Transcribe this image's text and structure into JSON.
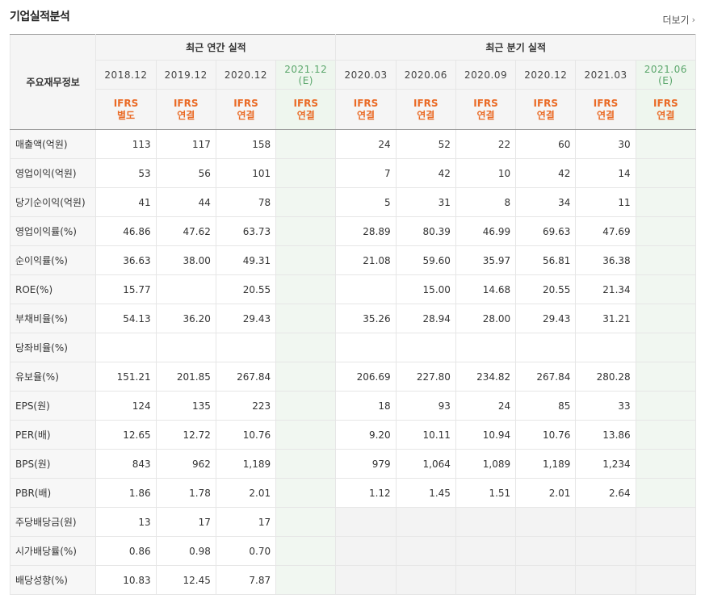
{
  "header": {
    "title": "기업실적분석",
    "more_label": "더보기"
  },
  "table": {
    "row_header": "주요재무정보",
    "group_annual": "최근 연간 실적",
    "group_quarter": "최근 분기 실적",
    "annual_periods": [
      {
        "date": "2018.12",
        "est": "",
        "std": "IFRS",
        "scope": "별도"
      },
      {
        "date": "2019.12",
        "est": "",
        "std": "IFRS",
        "scope": "연결"
      },
      {
        "date": "2020.12",
        "est": "",
        "std": "IFRS",
        "scope": "연결"
      },
      {
        "date": "2021.12",
        "est": "(E)",
        "std": "IFRS",
        "scope": "연결"
      }
    ],
    "quarter_periods": [
      {
        "date": "2020.03",
        "est": "",
        "std": "IFRS",
        "scope": "연결"
      },
      {
        "date": "2020.06",
        "est": "",
        "std": "IFRS",
        "scope": "연결"
      },
      {
        "date": "2020.09",
        "est": "",
        "std": "IFRS",
        "scope": "연결"
      },
      {
        "date": "2020.12",
        "est": "",
        "std": "IFRS",
        "scope": "연결"
      },
      {
        "date": "2021.03",
        "est": "",
        "std": "IFRS",
        "scope": "연결"
      },
      {
        "date": "2021.06",
        "est": "(E)",
        "std": "IFRS",
        "scope": "연결"
      }
    ],
    "rows": [
      {
        "label": "매출액(억원)",
        "annual": [
          "113",
          "117",
          "158",
          ""
        ],
        "quarter": [
          "24",
          "52",
          "22",
          "60",
          "30",
          ""
        ]
      },
      {
        "label": "영업이익(억원)",
        "annual": [
          "53",
          "56",
          "101",
          ""
        ],
        "quarter": [
          "7",
          "42",
          "10",
          "42",
          "14",
          ""
        ]
      },
      {
        "label": "당기순이익(억원)",
        "annual": [
          "41",
          "44",
          "78",
          ""
        ],
        "quarter": [
          "5",
          "31",
          "8",
          "34",
          "11",
          ""
        ]
      },
      {
        "label": "영업이익률(%)",
        "annual": [
          "46.86",
          "47.62",
          "63.73",
          ""
        ],
        "quarter": [
          "28.89",
          "80.39",
          "46.99",
          "69.63",
          "47.69",
          ""
        ]
      },
      {
        "label": "순이익률(%)",
        "annual": [
          "36.63",
          "38.00",
          "49.31",
          ""
        ],
        "quarter": [
          "21.08",
          "59.60",
          "35.97",
          "56.81",
          "36.38",
          ""
        ]
      },
      {
        "label": "ROE(%)",
        "annual": [
          "15.77",
          "",
          "20.55",
          ""
        ],
        "quarter": [
          "",
          "15.00",
          "14.68",
          "20.55",
          "21.34",
          ""
        ]
      },
      {
        "label": "부채비율(%)",
        "annual": [
          "54.13",
          "36.20",
          "29.43",
          ""
        ],
        "quarter": [
          "35.26",
          "28.94",
          "28.00",
          "29.43",
          "31.21",
          ""
        ]
      },
      {
        "label": "당좌비율(%)",
        "annual": [
          "",
          "",
          "",
          ""
        ],
        "quarter": [
          "",
          "",
          "",
          "",
          "",
          ""
        ]
      },
      {
        "label": "유보율(%)",
        "annual": [
          "151.21",
          "201.85",
          "267.84",
          ""
        ],
        "quarter": [
          "206.69",
          "227.80",
          "234.82",
          "267.84",
          "280.28",
          ""
        ]
      },
      {
        "label": "EPS(원)",
        "annual": [
          "124",
          "135",
          "223",
          ""
        ],
        "quarter": [
          "18",
          "93",
          "24",
          "85",
          "33",
          ""
        ]
      },
      {
        "label": "PER(배)",
        "annual": [
          "12.65",
          "12.72",
          "10.76",
          ""
        ],
        "quarter": [
          "9.20",
          "10.11",
          "10.94",
          "10.76",
          "13.86",
          ""
        ]
      },
      {
        "label": "BPS(원)",
        "annual": [
          "843",
          "962",
          "1,189",
          ""
        ],
        "quarter": [
          "979",
          "1,064",
          "1,089",
          "1,189",
          "1,234",
          ""
        ]
      },
      {
        "label": "PBR(배)",
        "annual": [
          "1.86",
          "1.78",
          "2.01",
          ""
        ],
        "quarter": [
          "1.12",
          "1.45",
          "1.51",
          "2.01",
          "2.64",
          ""
        ]
      },
      {
        "label": "주당배당금(원)",
        "annual": [
          "13",
          "17",
          "17",
          ""
        ],
        "quarter": [
          "",
          "",
          "",
          "",
          "",
          ""
        ]
      },
      {
        "label": "시가배당률(%)",
        "annual": [
          "0.86",
          "0.98",
          "0.70",
          ""
        ],
        "quarter": [
          "",
          "",
          "",
          "",
          "",
          ""
        ]
      },
      {
        "label": "배당성향(%)",
        "annual": [
          "10.83",
          "12.45",
          "7.87",
          ""
        ],
        "quarter": [
          "",
          "",
          "",
          "",
          "",
          ""
        ]
      }
    ]
  }
}
